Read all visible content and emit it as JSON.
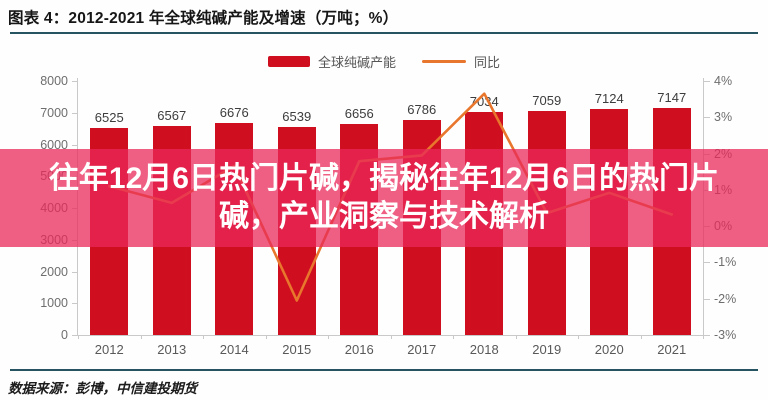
{
  "header": {
    "title": "图表 4：2012-2021 年全球纯碱产能及增速（万吨；%）"
  },
  "overlay_banner": {
    "line1": "往年12月6日热门片碱，揭秘往年12月6日的热门片",
    "line2": "碱，产业洞察与技术解析",
    "full_text": "往年12月6日热门片碱，揭秘往年12月6日的热门片碱，产业洞察与技术解析",
    "background": "rgba(233,40,90,0.75)",
    "text_color": "#ffffff"
  },
  "footer": {
    "source": "数据来源：彭博，中信建投期货"
  },
  "colors": {
    "bar": "#cf0e1f",
    "line": "#e8762c",
    "rule": "#265561",
    "axis": "#c9c9c9"
  },
  "chart_data": {
    "type": "bar",
    "title": "2012-2021 年全球纯碱产能及增速（万吨；%）",
    "categories": [
      "2012",
      "2013",
      "2014",
      "2015",
      "2016",
      "2017",
      "2018",
      "2019",
      "2020",
      "2021"
    ],
    "series": [
      {
        "name": "全球纯碱产能",
        "kind": "bar",
        "axis": "left",
        "color": "#cf0e1f",
        "values": [
          6525,
          6567,
          6676,
          6539,
          6656,
          6786,
          7034,
          7059,
          7124,
          7147
        ]
      },
      {
        "name": "同比",
        "kind": "line",
        "axis": "right",
        "color": "#e8762c",
        "values": [
          1.1,
          0.64,
          1.66,
          -2.05,
          1.79,
          1.95,
          3.65,
          0.36,
          0.92,
          0.32
        ]
      }
    ],
    "bar_value_labels": [
      "6525",
      "6567",
      "6676",
      "6539",
      "6656",
      "6786",
      "7034",
      "7059",
      "7124",
      "7147"
    ],
    "left_axis": {
      "min": 0,
      "max": 8000,
      "ticks": [
        "8000",
        "7000",
        "6000",
        "5000",
        "4000",
        "3000",
        "2000",
        "1000",
        "0"
      ],
      "unit": "万吨"
    },
    "right_axis": {
      "min": -3,
      "max": 4,
      "ticks": [
        "4%",
        "3%",
        "2%",
        "1%",
        "0%",
        "-1%",
        "-2%",
        "-3%"
      ],
      "unit": "%"
    },
    "legend_position": "top-center",
    "grid": false
  }
}
